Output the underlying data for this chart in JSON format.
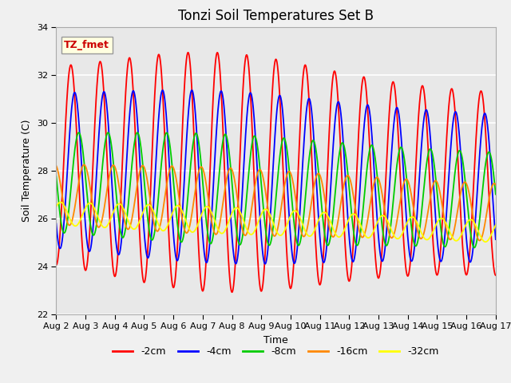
{
  "title": "Tonzi Soil Temperatures Set B",
  "xlabel": "Time",
  "ylabel": "Soil Temperature (C)",
  "annotation": "TZ_fmet",
  "ylim": [
    22,
    34
  ],
  "yticks": [
    22,
    24,
    26,
    28,
    30,
    32,
    34
  ],
  "x_start_day": 2,
  "x_end_day": 17,
  "n_points": 1500,
  "series": [
    {
      "label": "-2cm",
      "color": "#ff0000",
      "amplitude": 3.8,
      "mean": 28.2,
      "phase_shift": 0.25,
      "period": 1.0,
      "amp_peak_day": 7.5,
      "amp_peak_extra": 1.2
    },
    {
      "label": "-4cm",
      "color": "#0000ff",
      "amplitude": 3.1,
      "mean": 28.0,
      "phase_shift": 0.38,
      "period": 1.0,
      "amp_peak_day": 7.5,
      "amp_peak_extra": 0.5
    },
    {
      "label": "-8cm",
      "color": "#00cc00",
      "amplitude": 2.0,
      "mean": 27.5,
      "phase_shift": 0.52,
      "period": 1.0,
      "amp_peak_day": 7.5,
      "amp_peak_extra": 0.3
    },
    {
      "label": "-16cm",
      "color": "#ff8800",
      "amplitude": 1.2,
      "mean": 27.0,
      "phase_shift": 0.7,
      "period": 1.0,
      "amp_peak_day": 7.5,
      "amp_peak_extra": 0.2
    },
    {
      "label": "-32cm",
      "color": "#ffff00",
      "amplitude": 0.45,
      "mean": 26.2,
      "phase_shift": 0.9,
      "period": 1.0,
      "amp_peak_day": 7.5,
      "amp_peak_extra": 0.1
    }
  ],
  "xtick_labels": [
    "Aug 2",
    "Aug 3",
    "Aug 4",
    "Aug 5",
    "Aug 6",
    "Aug 7",
    "Aug 8",
    "Aug 9",
    "Aug 10",
    "Aug 11",
    "Aug 12",
    "Aug 13",
    "Aug 14",
    "Aug 15",
    "Aug 16",
    "Aug 17"
  ],
  "xtick_positions": [
    2,
    3,
    4,
    5,
    6,
    7,
    8,
    9,
    10,
    11,
    12,
    13,
    14,
    15,
    16,
    17
  ],
  "plot_bg_color": "#e8e8e8",
  "fig_bg_color": "#f0f0f0",
  "title_fontsize": 12,
  "axis_label_fontsize": 9,
  "tick_fontsize": 8,
  "legend_fontsize": 9,
  "line_width": 1.3
}
